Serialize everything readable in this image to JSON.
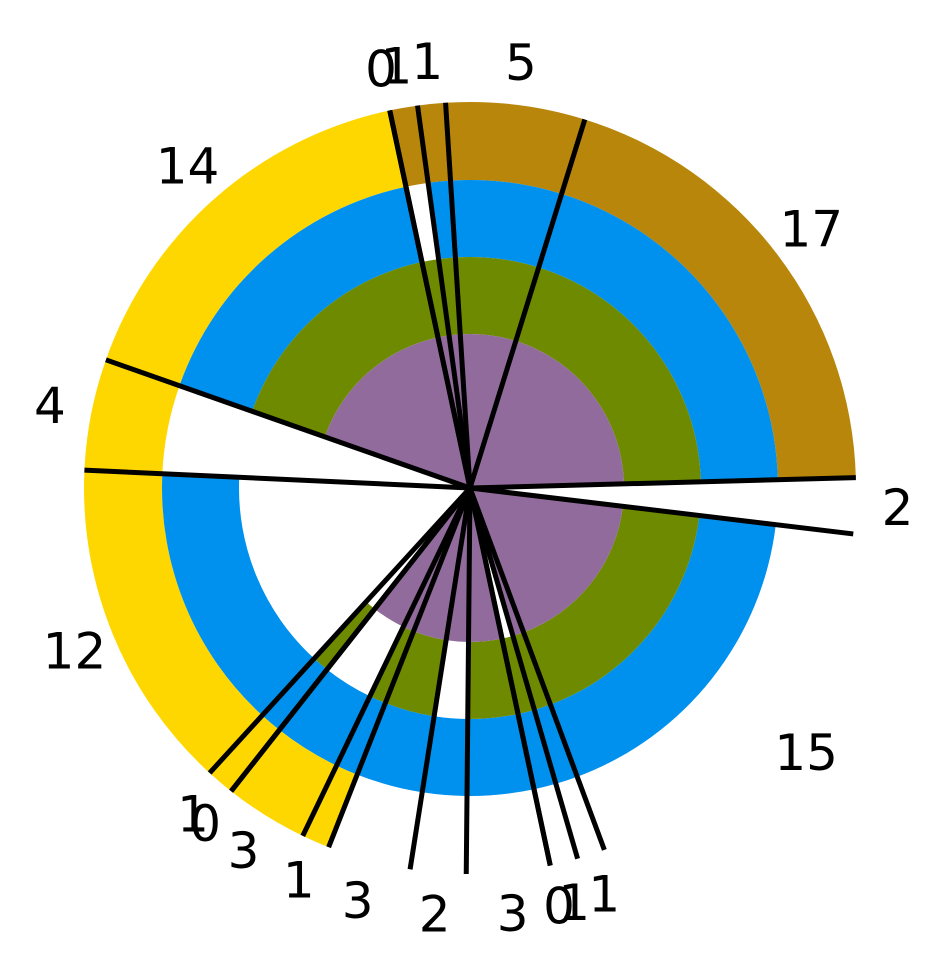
{
  "chart_data": {
    "type": "pie",
    "subtype": "nested-polar-bar",
    "categories": [
      "0",
      "1",
      "1",
      "5",
      "17",
      "2",
      "15",
      "1",
      "1",
      "0",
      "3",
      "2",
      "3",
      "1",
      "3",
      "0",
      "1",
      "12",
      "4",
      "14"
    ],
    "series": [
      {
        "values": [
          0,
          1,
          1,
          5,
          17,
          2,
          15,
          1,
          1,
          0,
          3,
          2,
          3,
          1,
          3,
          0,
          1,
          12,
          4,
          14
        ]
      },
      {
        "values": [
          1,
          0,
          1,
          4,
          4,
          0,
          4,
          1,
          1,
          1,
          2,
          4,
          4,
          3,
          3,
          2,
          2,
          4,
          0,
          4
        ]
      },
      {
        "values": [
          0,
          1,
          1,
          3,
          3,
          0,
          3,
          1,
          1,
          1,
          2,
          0,
          3,
          2,
          0,
          0,
          1,
          0,
          0,
          3
        ]
      },
      {
        "values": [
          2,
          2,
          2,
          2,
          2,
          0,
          2,
          2,
          0,
          0,
          2,
          2,
          2,
          2,
          2,
          0,
          0,
          0,
          0,
          2
        ]
      }
    ],
    "colors": [
      "#FFD700",
      "#0090EE",
      "#6D8A00",
      "#916B9B"
    ],
    "segment_colors": [
      "#FFD700",
      "#B8860B",
      "#B8860B",
      "#B8860B",
      "#B8860B",
      "#FFFFFF",
      "#FFFFFF",
      "#FFFFFF",
      "#FFFFFF",
      "#FFFFFF",
      "#FFFFFF",
      "#FFFFFF",
      "#FFFFFF",
      "#FFD700",
      "#FFD700",
      "#FFD700",
      "#FFD700",
      "#FFD700",
      "#FFD700",
      "#FFD700"
    ],
    "divider_color": "#000000",
    "legend": "none"
  }
}
